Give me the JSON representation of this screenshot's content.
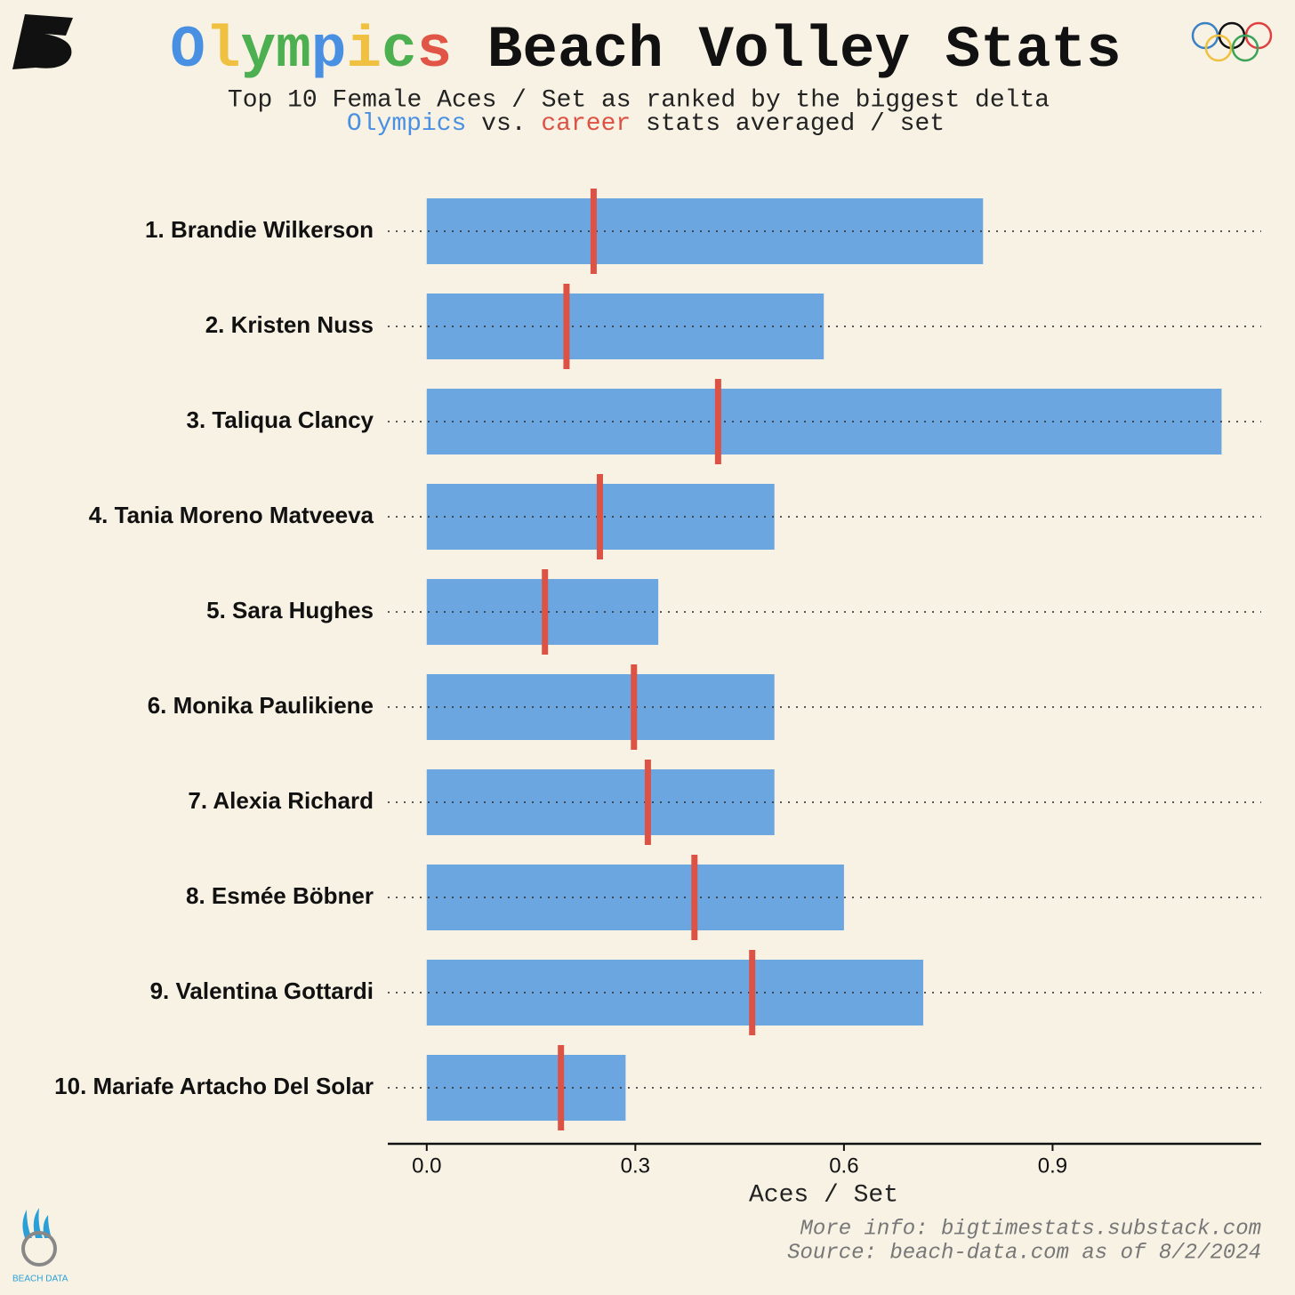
{
  "chart_data": {
    "type": "bar",
    "title_word": "Olympics",
    "title_word_colors": [
      "#4a90e2",
      "#f0c040",
      "#4caf50",
      "#4caf50",
      "#4a90e2",
      "#f0c040",
      "#4caf50",
      "#e05545"
    ],
    "title": "Beach Volley Stats",
    "subtitle": "Top 10 Female Aces / Set as ranked by the biggest delta",
    "subtitle_parts": [
      "vs.",
      "stats averaged / set"
    ],
    "categories": [
      "1. Brandie Wilkerson",
      "2. Kristen Nuss",
      "3. Taliqua Clancy",
      "4. Tania Moreno Matveeva",
      "5. Sara Hughes",
      "6. Monika Paulikiene",
      "7. Alexia Richard",
      "8. Esmée Böbner",
      "9. Valentina Gottardi",
      "10. Mariafe Artacho Del Solar"
    ],
    "series": [
      {
        "name": "Olympics",
        "color": "#6ca6e0",
        "values": [
          0.8,
          0.571,
          1.143,
          0.5,
          0.333,
          0.5,
          0.5,
          0.6,
          0.714,
          0.286
        ]
      },
      {
        "name": "career",
        "color": "#dc5346",
        "values": [
          0.24,
          0.201,
          0.419,
          0.249,
          0.17,
          0.298,
          0.318,
          0.385,
          0.468,
          0.193
        ]
      }
    ],
    "xlim": [
      -0.056,
      1.2
    ],
    "xticks": [
      {
        "value": 0,
        "label": "0.0"
      },
      0.3,
      0.6,
      0.9
    ],
    "xlabel": "Aces / Set",
    "footer": [
      "More info: bigtimestats.substack.com",
      "Source: beach-data.com as of 8/2/2024"
    ],
    "logo_text": "BEACH DATA"
  }
}
